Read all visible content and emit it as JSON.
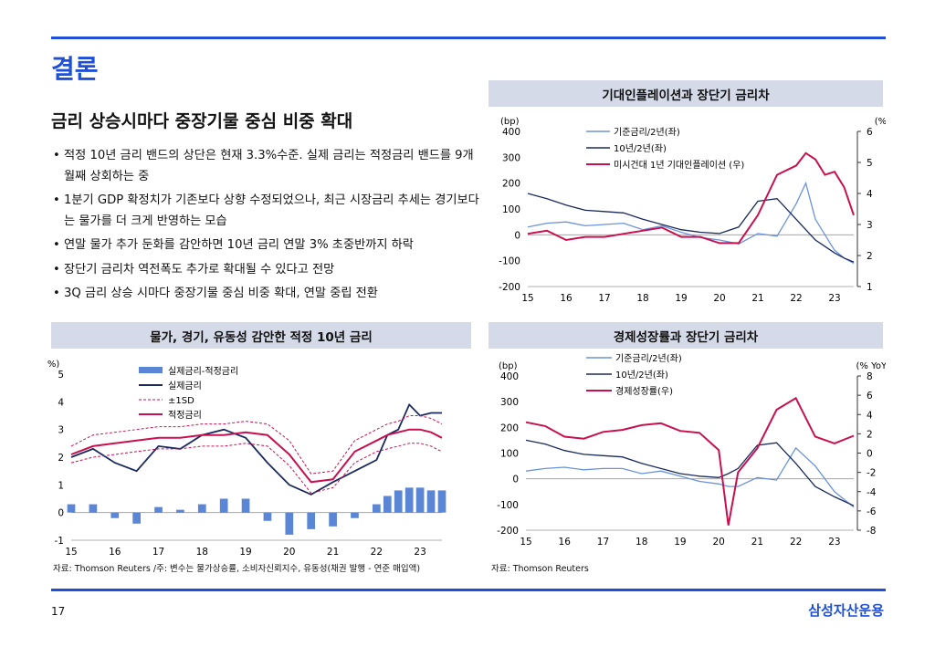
{
  "slide": {
    "title": "결론",
    "headline": "금리 상승시마다 중장기물 중심 비중 확대",
    "bullets": [
      "적정 10년 금리 밴드의 상단은 현재 3.3%수준. 실제 금리는 적정금리 밴드를 9개월째 상회하는 중",
      "1분기 GDP 확정치가 기존보다 상향 수정되었으나, 최근 시장금리 추세는 경기보다는 물가를 더 크게 반영하는 모습",
      "연말 물가 추가 둔화를 감안하면 10년 금리 연말 3% 초중반까지 하락",
      "장단기 금리차 역전폭도 추가로 확대될 수 있다고 전망",
      "3Q 금리 상승 시마다 중장기물 중심 비중 확대, 연말 중립 전환"
    ],
    "page_number": "17",
    "brand": "삼성자산운용"
  },
  "colors": {
    "accent": "#1f4fd6",
    "navy": "#1a2a5e",
    "lightblue": "#6b93dc",
    "crimson": "#c8104f",
    "barblue": "#5b86d6",
    "panel": "#d5dae9"
  },
  "charts": {
    "inflation": {
      "title": "기대인플레이션과 장단기 금리차",
      "source": "",
      "left_unit": "(bp)",
      "right_unit": "(%)",
      "left_ticks": [
        "400",
        "300",
        "200",
        "100",
        "0",
        "-100",
        "-200"
      ],
      "right_ticks": [
        "6",
        "5",
        "4",
        "3",
        "2",
        "1"
      ],
      "x_ticks": [
        "15",
        "16",
        "17",
        "18",
        "19",
        "20",
        "21",
        "22",
        "23"
      ],
      "legend": [
        "기준금리/2년(좌)",
        "10년/2년(좌)",
        "미시건대 1년 기대인플레이션 (우)"
      ]
    },
    "fair_rate": {
      "title": "물가, 경기, 유동성 감안한 적정 10년 금리",
      "source": "자료: Thomson Reuters /주: 변수는 물가상승률, 소비자신뢰지수, 유동성(채권 발행 - 연준 매입액)",
      "left_unit": "(%)",
      "left_ticks": [
        "5",
        "4",
        "3",
        "2",
        "1",
        "0",
        "-1"
      ],
      "x_ticks": [
        "15",
        "16",
        "17",
        "18",
        "19",
        "20",
        "21",
        "22",
        "23"
      ],
      "legend": [
        "실제금리-적정금리",
        "실제금리",
        "±1SD",
        "적정금리"
      ]
    },
    "growth": {
      "title": "경제성장률과 장단기 금리차",
      "source": "자료: Thomson Reuters",
      "left_unit": "(bp)",
      "right_unit": "(% YoY)",
      "left_ticks": [
        "400",
        "300",
        "200",
        "100",
        "0",
        "-100",
        "-200"
      ],
      "right_ticks": [
        "8",
        "6",
        "4",
        "2",
        "0",
        "-2",
        "-4",
        "-6",
        "-8"
      ],
      "x_ticks": [
        "15",
        "16",
        "17",
        "18",
        "19",
        "20",
        "21",
        "22",
        "23"
      ],
      "legend": [
        "기준금리/2년(좌)",
        "10년/2년(좌)",
        "경제성장률(우)"
      ]
    }
  },
  "chart_data": [
    {
      "type": "line",
      "title": "기대인플레이션과 장단기 금리차",
      "x": [
        2015,
        2015.5,
        2016,
        2016.5,
        2017,
        2017.5,
        2018,
        2018.5,
        2019,
        2019.5,
        2020,
        2020.5,
        2021,
        2021.5,
        2022,
        2022.25,
        2022.5,
        2022.75,
        2023,
        2023.25,
        2023.5
      ],
      "ylim_left": [
        -200,
        400
      ],
      "ylim_right": [
        1,
        6
      ],
      "series": [
        {
          "name": "기준금리/2년(좌)",
          "axis": "left",
          "values": [
            30,
            45,
            50,
            35,
            40,
            45,
            20,
            35,
            10,
            -10,
            -20,
            -35,
            5,
            -5,
            120,
            200,
            60,
            0,
            -60,
            -90,
            -110
          ]
        },
        {
          "name": "10년/2년(좌)",
          "axis": "left",
          "values": [
            160,
            140,
            115,
            95,
            90,
            85,
            60,
            40,
            20,
            10,
            5,
            30,
            130,
            140,
            60,
            20,
            -20,
            -45,
            -70,
            -90,
            -105
          ]
        },
        {
          "name": "미시건대 1년 기대인플레이션 (우)",
          "axis": "right",
          "values": [
            2.7,
            2.8,
            2.5,
            2.6,
            2.6,
            2.7,
            2.8,
            2.9,
            2.6,
            2.6,
            2.4,
            2.4,
            3.3,
            4.6,
            4.9,
            5.3,
            5.1,
            4.6,
            4.7,
            4.2,
            3.3
          ]
        }
      ]
    },
    {
      "type": "line",
      "title": "물가, 경기, 유동성 감안한 적정 10년 금리",
      "x": [
        2015,
        2015.5,
        2016,
        2016.5,
        2017,
        2017.5,
        2018,
        2018.5,
        2019,
        2019.5,
        2020,
        2020.5,
        2021,
        2021.5,
        2022,
        2022.25,
        2022.5,
        2022.75,
        2023,
        2023.25,
        2023.5
      ],
      "ylim": [
        -1,
        5
      ],
      "series": [
        {
          "name": "실제금리-적정금리",
          "type": "bar",
          "values": [
            0.3,
            0.3,
            -0.2,
            -0.4,
            0.2,
            0.1,
            0.3,
            0.5,
            0.5,
            -0.3,
            -0.8,
            -0.6,
            -0.5,
            -0.2,
            0.3,
            0.6,
            0.8,
            0.9,
            0.9,
            0.8,
            0.8
          ]
        },
        {
          "name": "실제금리",
          "values": [
            2.0,
            2.3,
            1.8,
            1.5,
            2.4,
            2.3,
            2.8,
            3.0,
            2.7,
            1.8,
            1.0,
            0.65,
            1.1,
            1.5,
            1.9,
            2.8,
            3.0,
            3.9,
            3.5,
            3.6,
            3.6
          ]
        },
        {
          "name": "+1SD",
          "values": [
            2.4,
            2.8,
            2.9,
            3.0,
            3.1,
            3.1,
            3.2,
            3.2,
            3.3,
            3.2,
            2.6,
            1.4,
            1.5,
            2.6,
            3.0,
            3.2,
            3.3,
            3.5,
            3.5,
            3.4,
            3.2
          ]
        },
        {
          "name": "-1SD",
          "values": [
            1.8,
            2.0,
            2.1,
            2.2,
            2.3,
            2.3,
            2.4,
            2.4,
            2.5,
            2.4,
            1.7,
            0.7,
            0.9,
            1.8,
            2.2,
            2.3,
            2.4,
            2.5,
            2.5,
            2.4,
            2.2
          ]
        },
        {
          "name": "적정금리",
          "values": [
            2.1,
            2.4,
            2.5,
            2.6,
            2.7,
            2.7,
            2.8,
            2.8,
            2.9,
            2.8,
            2.1,
            1.1,
            1.2,
            2.2,
            2.6,
            2.8,
            2.9,
            3.0,
            3.0,
            2.9,
            2.7
          ]
        }
      ]
    },
    {
      "type": "line",
      "title": "경제성장률과 장단기 금리차",
      "x": [
        2015,
        2015.5,
        2016,
        2016.5,
        2017,
        2017.5,
        2018,
        2018.5,
        2019,
        2019.5,
        2020,
        2020.25,
        2020.5,
        2021,
        2021.5,
        2022,
        2022.5,
        2023,
        2023.5
      ],
      "ylim_left": [
        -200,
        400
      ],
      "ylim_right": [
        -8,
        8
      ],
      "series": [
        {
          "name": "기준금리/2년(좌)",
          "axis": "left",
          "values": [
            30,
            40,
            45,
            35,
            40,
            40,
            20,
            30,
            10,
            -10,
            -20,
            -30,
            -30,
            5,
            -5,
            120,
            50,
            -50,
            -110
          ]
        },
        {
          "name": "10년/2년(좌)",
          "axis": "left",
          "values": [
            150,
            135,
            110,
            95,
            90,
            85,
            60,
            40,
            20,
            10,
            5,
            20,
            40,
            130,
            140,
            60,
            -30,
            -70,
            -105
          ]
        },
        {
          "name": "경제성장률(우)",
          "axis": "right",
          "values": [
            3.2,
            2.8,
            1.7,
            1.5,
            2.2,
            2.4,
            2.9,
            3.1,
            2.3,
            2.1,
            0.3,
            -7.5,
            -2.0,
            0.5,
            4.5,
            5.7,
            1.7,
            1.0,
            1.8
          ]
        }
      ]
    }
  ]
}
